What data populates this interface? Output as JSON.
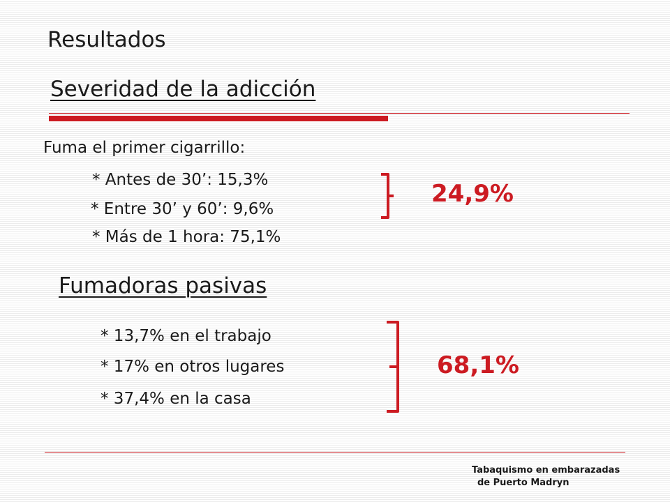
{
  "slide": {
    "title": "Resultados",
    "subtitle": "Severidad de la adicción",
    "lead": "Fuma el primer cigarrillo:",
    "first_items": [
      "* Antes de 30’: 15,3%",
      "* Entre 30’ y 60’: 9,6%",
      "* Más de 1 hora: 75,1%"
    ],
    "first_total": "24,9%",
    "section2": "Fumadoras pasivas",
    "second_items": [
      "* 13,7% en el trabajo",
      "* 17% en otros lugares",
      "* 37,4% en la casa"
    ],
    "second_total": "68,1%",
    "footer_line1": "Tabaquismo en embarazadas",
    "footer_line2": "de Puerto Madryn"
  },
  "colors": {
    "accent": "#cc1b22",
    "text": "#1a1a1a",
    "background": "#ffffff"
  }
}
